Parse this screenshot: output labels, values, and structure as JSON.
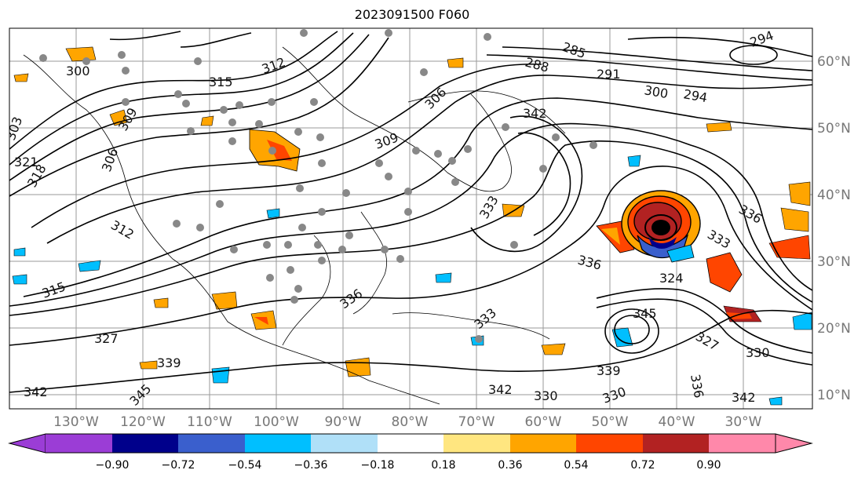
{
  "title": "2023091500 F060",
  "lon_labels": [
    "130°W",
    "120°W",
    "110°W",
    "100°W",
    "90°W",
    "80°W",
    "70°W",
    "60°W",
    "50°W",
    "40°W",
    "30°W"
  ],
  "lat_labels": [
    "60°N",
    "50°N",
    "40°N",
    "30°N",
    "20°N",
    "10°N"
  ],
  "contour_labels": [
    "303",
    "300",
    "315",
    "312",
    "309",
    "306",
    "288",
    "285",
    "291",
    "294",
    "300",
    "294",
    "321",
    "318",
    "312",
    "315",
    "309",
    "306",
    "327",
    "339",
    "342",
    "345",
    "336",
    "333",
    "336",
    "330",
    "345",
    "342",
    "330",
    "327",
    "333",
    "339",
    "342",
    "330",
    "333",
    "336",
    "342",
    "324",
    "336"
  ],
  "colorbar": {
    "tick_labels": [
      "−0.90",
      "−0.72",
      "−0.54",
      "−0.36",
      "−0.18",
      "0.18",
      "0.36",
      "0.54",
      "0.72",
      "0.90"
    ],
    "colors": [
      "#9b3dd6",
      "#00008b",
      "#3a5fcd",
      "#00bfff",
      "#b0e0f8",
      "#ffffff",
      "#ffe680",
      "#ffa500",
      "#ff4500",
      "#b22222",
      "#ff88aa"
    ]
  }
}
